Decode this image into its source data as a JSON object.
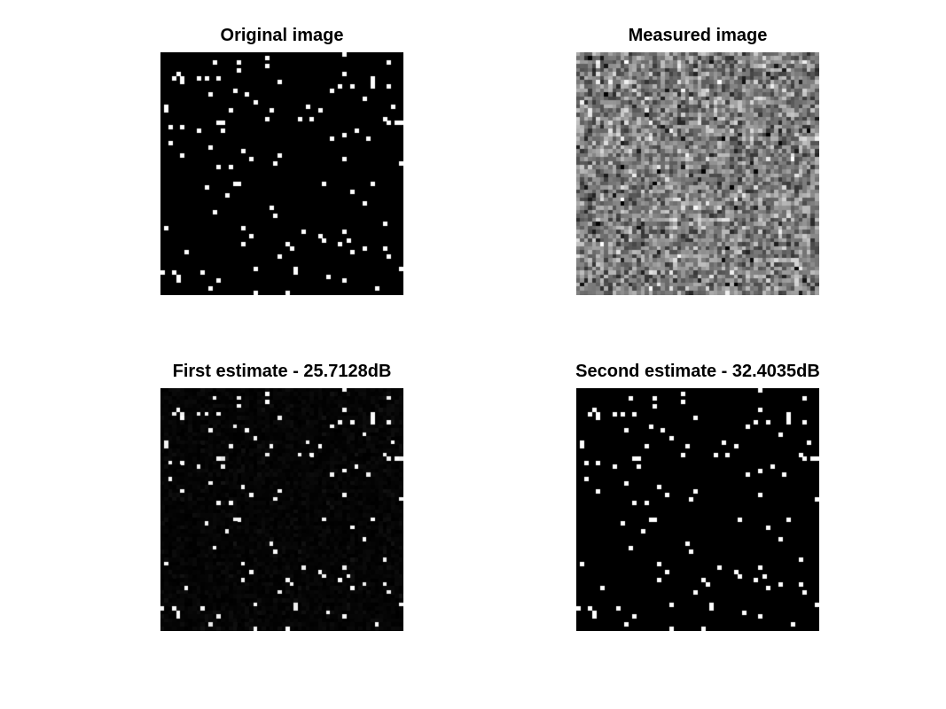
{
  "figure": {
    "background_color": "#ffffff",
    "panels": [
      {
        "id": "original",
        "title": "Original image",
        "kind": "sparse-binary",
        "grid_size": 60,
        "seed": 11,
        "density": 0.032,
        "on_color": "#ffffff",
        "off_color": "#000000"
      },
      {
        "id": "measured",
        "title": "Measured image",
        "kind": "gaussian-noise",
        "grid_size": 60,
        "seed": 29,
        "mean_gray": 0.5,
        "std_gray": 0.17
      },
      {
        "id": "first",
        "title": "First estimate - 25.7128dB",
        "kind": "sparse-binary",
        "grid_size": 60,
        "seed": 11,
        "density": 0.032,
        "residual_noise": 0.04,
        "on_color": "#ffffff",
        "off_color": "#000000"
      },
      {
        "id": "second",
        "title": "Second estimate - 32.4035dB",
        "kind": "sparse-binary",
        "grid_size": 60,
        "seed": 11,
        "density": 0.032,
        "on_color": "#ffffff",
        "off_color": "#000000"
      }
    ]
  }
}
